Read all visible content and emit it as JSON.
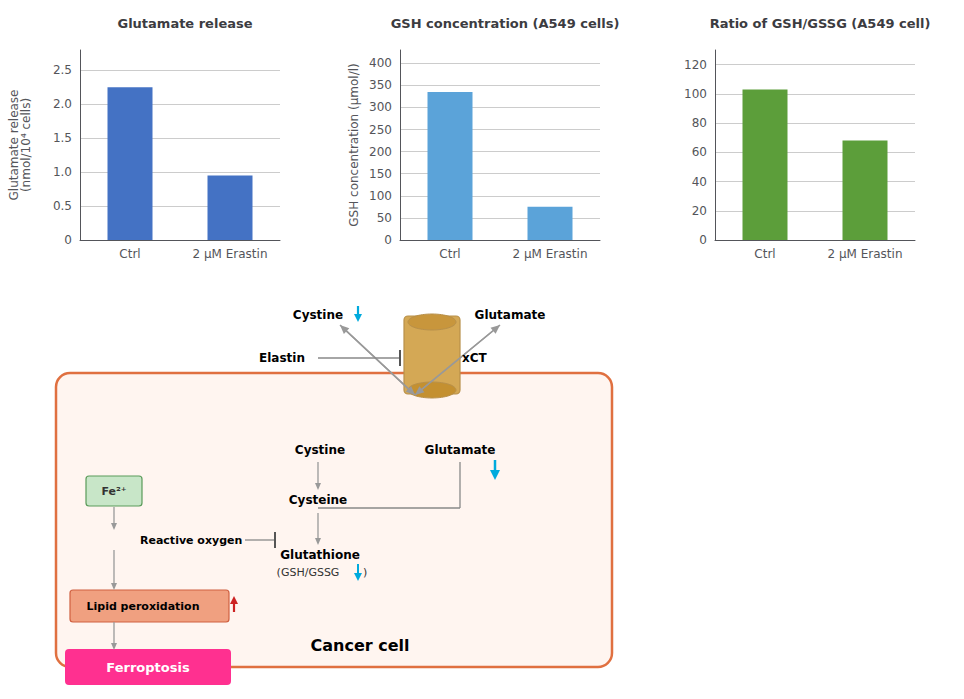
{
  "chart_data": [
    {
      "type": "bar",
      "title": "Glutamate release",
      "ylabel": "Glutamate release\n(nmol/10⁴ cells)",
      "categories": [
        "Ctrl",
        "2 μM Erastin"
      ],
      "values": [
        2.25,
        0.95
      ],
      "color": "#4472C4",
      "ylim": [
        0,
        2.8
      ],
      "yticks": [
        0,
        0.5,
        {
          "value": 1.0,
          "label": "1.0"
        },
        1.5,
        {
          "value": 2.0,
          "label": "2.0"
        },
        2.5
      ],
      "grid": true
    },
    {
      "type": "bar",
      "title": "GSH concentration (A549 cells)",
      "ylabel": "GSH concentration (μmol/l)",
      "categories": [
        "Ctrl",
        "2 μM Erastin"
      ],
      "values": [
        335,
        75
      ],
      "color": "#5BA3D9",
      "ylim": [
        0,
        430
      ],
      "yticks": [
        0,
        50,
        100,
        150,
        200,
        250,
        300,
        350,
        400
      ],
      "grid": true
    },
    {
      "type": "bar",
      "title": "Ratio of GSH/GSSG (A549 cell)",
      "categories": [
        "Ctrl",
        "2 μM Erastin"
      ],
      "values": [
        103,
        68
      ],
      "color": "#5C9E3A",
      "ylim": [
        0,
        130
      ],
      "yticks": [
        0,
        20,
        40,
        60,
        80,
        100,
        120
      ],
      "grid": true
    }
  ],
  "annotations": [
    "xCT",
    "Cystine",
    "Glutamate",
    "Elastin",
    "Cystine",
    "Glutamate",
    "Cysteine",
    "Glutathione",
    "(GSH/GSSG",
    ")",
    "Fe²⁺",
    "Reactive oxygen",
    "Lipid peroxidation",
    "Cancer cell",
    "Ferroptosis"
  ]
}
